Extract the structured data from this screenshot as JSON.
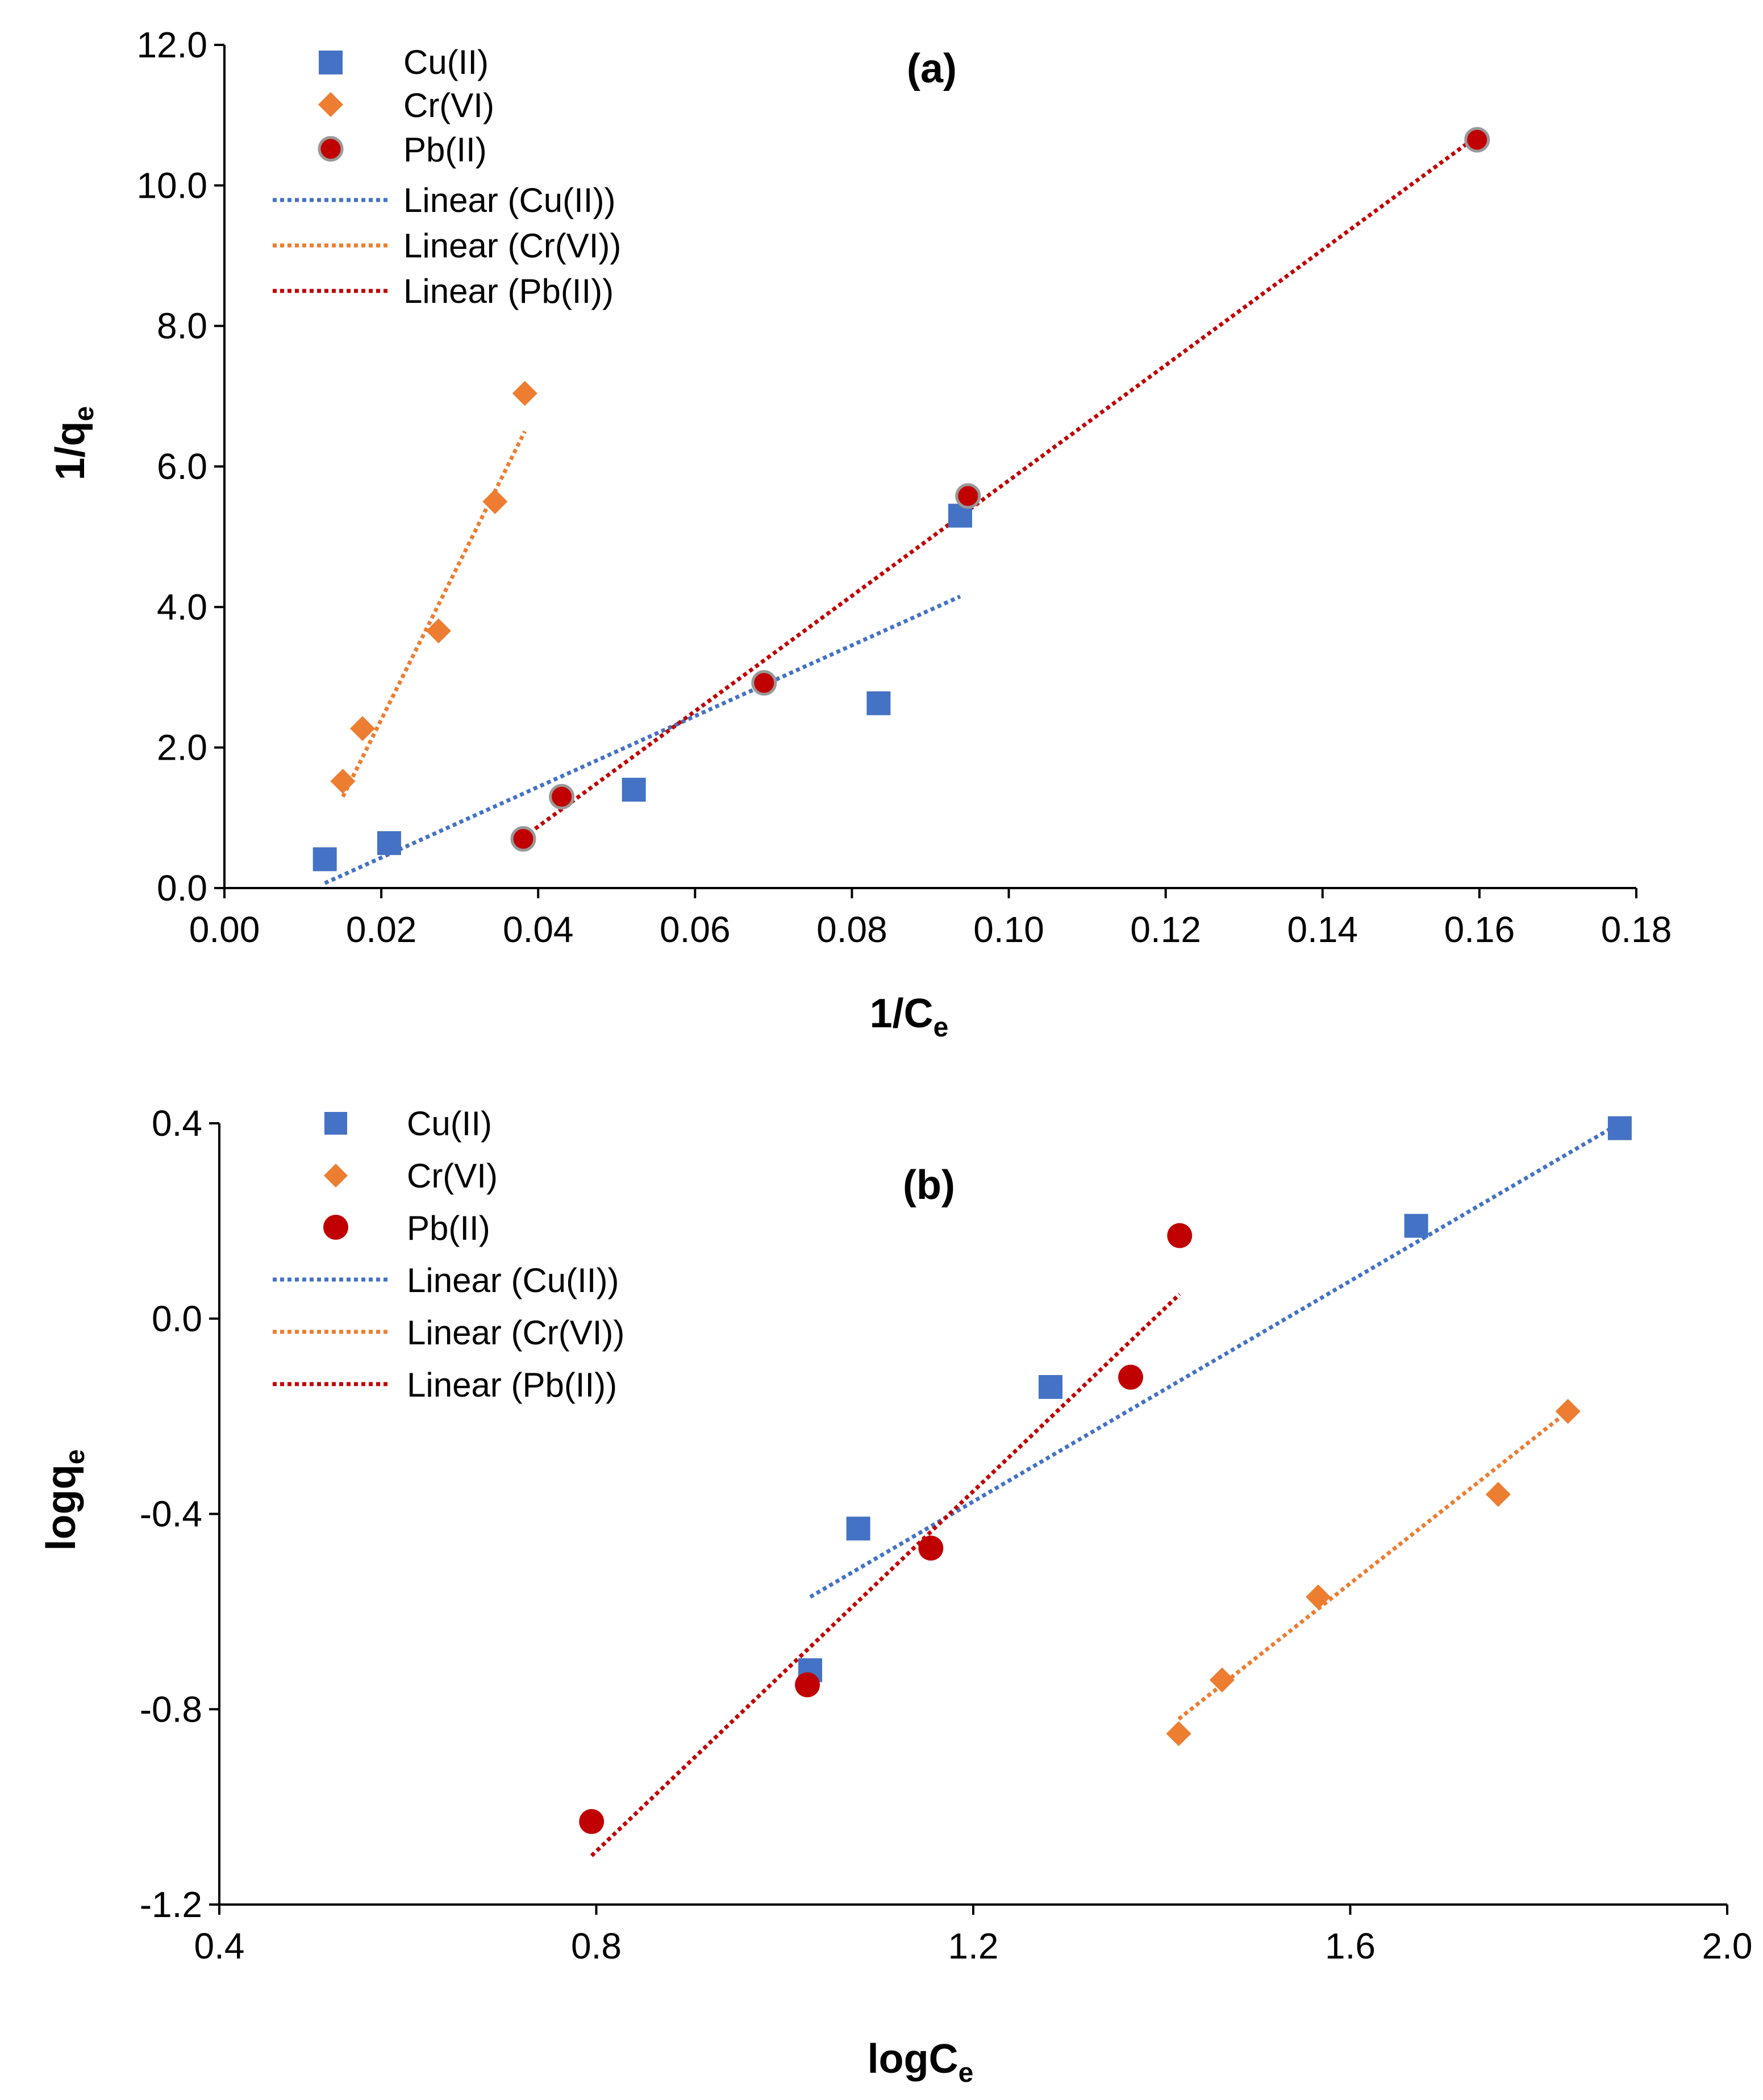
{
  "colors": {
    "cu": "#4472C4",
    "cr": "#ED7D31",
    "pb": "#C00000",
    "axis": "#000000"
  },
  "chart_data": [
    {
      "type": "scatter",
      "panel_label": "(a)",
      "xlabel": {
        "main": "1/C",
        "sub": "e"
      },
      "ylabel": {
        "main": "1/q",
        "sub": "e"
      },
      "xlim": [
        0.0,
        0.18
      ],
      "ylim": [
        0.0,
        12.0
      ],
      "x_ticks": [
        "0.00",
        "0.02",
        "0.04",
        "0.06",
        "0.08",
        "0.10",
        "0.12",
        "0.14",
        "0.16",
        "0.18"
      ],
      "y_ticks": [
        "0.0",
        "2.0",
        "4.0",
        "6.0",
        "8.0",
        "10.0",
        "12.0"
      ],
      "grid": false,
      "legend_position": "top-left",
      "series": [
        {
          "name": "Cu(II)",
          "marker": "square",
          "color": "#4472C4",
          "x": [
            0.0128,
            0.021,
            0.0522,
            0.0834,
            0.0938
          ],
          "y": [
            0.41,
            0.64,
            1.4,
            2.63,
            5.3
          ]
        },
        {
          "name": "Cr(VI)",
          "marker": "diamond",
          "color": "#ED7D31",
          "x": [
            0.0151,
            0.0176,
            0.0273,
            0.0345,
            0.0383
          ],
          "y": [
            1.52,
            2.27,
            3.66,
            5.5,
            7.04
          ]
        },
        {
          "name": "Pb(II)",
          "marker": "circle",
          "color": "#C00000",
          "x": [
            0.0381,
            0.043,
            0.0688,
            0.0948,
            0.1597
          ],
          "y": [
            0.7,
            1.3,
            2.92,
            5.58,
            10.65
          ]
        }
      ],
      "trendlines": [
        {
          "name": "Linear (Cu(II))",
          "color": "#4472C4",
          "x": [
            0.0128,
            0.0938
          ],
          "y": [
            0.07,
            4.15
          ]
        },
        {
          "name": "Linear (Cr(VI))",
          "color": "#ED7D31",
          "x": [
            0.0151,
            0.0383
          ],
          "y": [
            1.3,
            6.5
          ]
        },
        {
          "name": "Linear (Pb(II))",
          "color": "#C00000",
          "x": [
            0.0381,
            0.1597
          ],
          "y": [
            0.72,
            10.7
          ]
        }
      ]
    },
    {
      "type": "scatter",
      "panel_label": "(b)",
      "xlabel": {
        "main": "logC",
        "sub": "e"
      },
      "ylabel": {
        "main": "logq",
        "sub": "e"
      },
      "xlim": [
        0.4,
        2.0
      ],
      "ylim": [
        -1.2,
        0.4
      ],
      "x_ticks": [
        "0.4",
        "0.8",
        "1.2",
        "1.6",
        "2.0"
      ],
      "y_ticks": [
        "-1.2",
        "-0.8",
        "-0.4",
        "0.0",
        "0.4"
      ],
      "grid": false,
      "legend_position": "top-left",
      "series": [
        {
          "name": "Cu(II)",
          "marker": "square",
          "color": "#4472C4",
          "x": [
            1.027,
            1.078,
            1.282,
            1.67,
            1.886
          ],
          "y": [
            -0.72,
            -0.43,
            -0.14,
            0.19,
            0.39
          ]
        },
        {
          "name": "Cr(VI)",
          "marker": "diamond",
          "color": "#ED7D31",
          "x": [
            1.418,
            1.464,
            1.566,
            1.757,
            1.831
          ],
          "y": [
            -0.85,
            -0.74,
            -0.57,
            -0.36,
            -0.19
          ]
        },
        {
          "name": "Pb(II)",
          "marker": "circle",
          "color": "#C00000",
          "x": [
            0.795,
            1.024,
            1.155,
            1.367,
            1.419
          ],
          "y": [
            -1.03,
            -0.75,
            -0.47,
            -0.12,
            0.17
          ]
        }
      ],
      "trendlines": [
        {
          "name": "Linear (Cu(II))",
          "color": "#4472C4",
          "x": [
            1.027,
            1.886
          ],
          "y": [
            -0.57,
            0.4
          ]
        },
        {
          "name": "Linear (Cr(VI))",
          "color": "#ED7D31",
          "x": [
            1.418,
            1.831
          ],
          "y": [
            -0.82,
            -0.19
          ]
        },
        {
          "name": "Linear (Pb(II))",
          "color": "#C00000",
          "x": [
            0.795,
            1.419
          ],
          "y": [
            -1.1,
            0.05
          ]
        }
      ]
    }
  ]
}
